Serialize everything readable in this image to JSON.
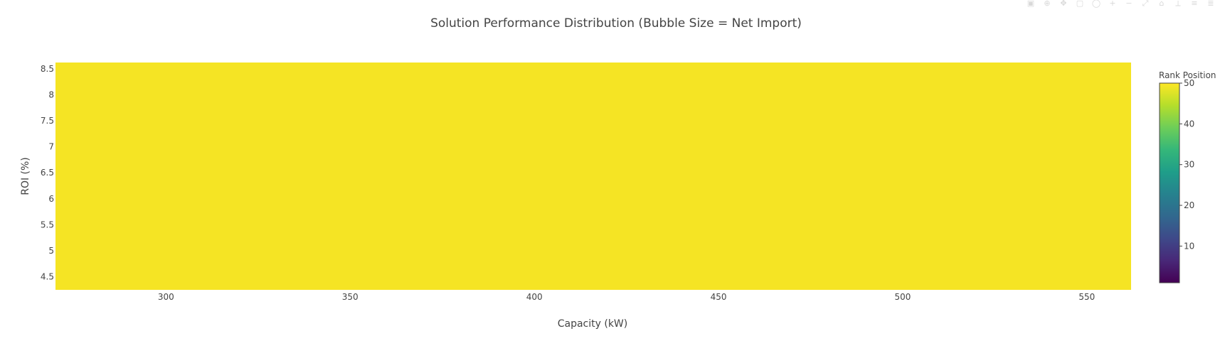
{
  "modebar": {
    "buttons": [
      {
        "name": "download-plot-icon",
        "glyph": "▣"
      },
      {
        "name": "zoom-icon",
        "glyph": "⊕"
      },
      {
        "name": "pan-icon",
        "glyph": "✥"
      },
      {
        "name": "box-select-icon",
        "glyph": "▢"
      },
      {
        "name": "lasso-select-icon",
        "glyph": "◯"
      },
      {
        "name": "zoom-in-icon",
        "glyph": "+"
      },
      {
        "name": "zoom-out-icon",
        "glyph": "−"
      },
      {
        "name": "autoscale-icon",
        "glyph": "⤢"
      },
      {
        "name": "reset-axes-icon",
        "glyph": "⌂"
      },
      {
        "name": "spike-lines-icon",
        "glyph": "⟂"
      },
      {
        "name": "hover-closest-icon",
        "glyph": "≡"
      },
      {
        "name": "hover-compare-icon",
        "glyph": "≣"
      }
    ]
  },
  "chart_data": {
    "type": "scatter",
    "title": "Solution Performance Distribution (Bubble Size = Net Import)",
    "xlabel": "Capacity (kW)",
    "ylabel": "ROI (%)",
    "xlim": [
      270,
      562
    ],
    "ylim": [
      4.25,
      8.62
    ],
    "xticks": [
      300,
      350,
      400,
      450,
      500,
      550
    ],
    "xtick_labels": [
      "300",
      "350",
      "400",
      "450",
      "500",
      "550"
    ],
    "yticks": [
      4.5,
      5,
      5.5,
      6,
      6.5,
      7,
      7.5,
      8,
      8.5
    ],
    "ytick_labels": [
      "4.5",
      "5",
      "5.5",
      "6",
      "6.5",
      "7",
      "7.5",
      "8",
      "8.5"
    ],
    "plot_fill_color": "#f5e424",
    "plot_fill_value": 50,
    "colorbar": {
      "title": "Rank Position",
      "range": [
        1,
        50
      ],
      "ticks": [
        10,
        20,
        30,
        40,
        50
      ],
      "tick_labels": [
        "10",
        "20",
        "30",
        "40",
        "50"
      ],
      "colorscale": [
        "#440154",
        "#482878",
        "#3e4989",
        "#31688e",
        "#26828e",
        "#1f9e89",
        "#35b779",
        "#6ece58",
        "#b5de2b",
        "#fde725"
      ]
    },
    "grid": false,
    "legend": "none"
  }
}
